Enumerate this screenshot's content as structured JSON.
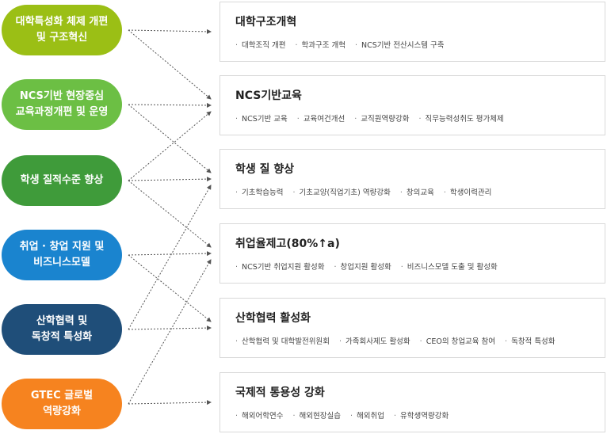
{
  "colors": {
    "lime": "#9bbf15",
    "green": "#6cbf44",
    "dark_green": "#3f9b3a",
    "blue": "#1a84cf",
    "navy": "#1f4e79",
    "orange": "#f6831f"
  },
  "left_nodes": [
    {
      "label": "대학특성화 체제 개편\n및 구조혁신",
      "color": "#9bbf15"
    },
    {
      "label": "NCS기반 현장중심\n교육과정개편 및 운영",
      "color": "#6cbf44"
    },
    {
      "label": "학생 질적수준 향상",
      "color": "#3f9b3a"
    },
    {
      "label": "취업 · 창업 지원 및\n비즈니스모델",
      "color": "#1a84cf"
    },
    {
      "label": "산학협력 및\n독창적 특성화",
      "color": "#1f4e79"
    },
    {
      "label": "GTEC 글로벌\n역량강화",
      "color": "#f6831f"
    }
  ],
  "right_boxes": [
    {
      "title": "대학구조개혁",
      "items": [
        "대학조직 개편",
        "학과구조 개혁",
        "NCS기반 전산시스템 구축"
      ]
    },
    {
      "title": "NCS기반교육",
      "items": [
        "NCS기반 교육",
        "교육여건개선",
        "교직원역량강화",
        "직무능력성취도 평가체제"
      ]
    },
    {
      "title": "학생 질 향상",
      "items": [
        "기초학습능력",
        "기초교양(직업기초) 역량강화",
        "창의교육",
        "학생이력관리"
      ]
    },
    {
      "title": "취업율제고(80%↑a)",
      "items": [
        "NCS기반 취업지원 활성화",
        "창업지원 활성화",
        "비즈니스모델 도출 및 활성화"
      ]
    },
    {
      "title": "산학협력 활성화",
      "items": [
        "산학협력 및 대학발전위원회",
        "가족회사제도 활성화",
        "CEO의 창업교육 참여",
        "독창적 특성화"
      ]
    },
    {
      "title": "국제적 통용성 강화",
      "items": [
        "해외어학연수",
        "해외현장실습",
        "해외취업",
        "유학생역량강화"
      ]
    }
  ],
  "links": [
    {
      "from": 0,
      "to": 0
    },
    {
      "from": 0,
      "to": 1
    },
    {
      "from": 1,
      "to": 1
    },
    {
      "from": 1,
      "to": 2
    },
    {
      "from": 2,
      "to": 1
    },
    {
      "from": 2,
      "to": 2
    },
    {
      "from": 2,
      "to": 3
    },
    {
      "from": 3,
      "to": 3
    },
    {
      "from": 3,
      "to": 4
    },
    {
      "from": 4,
      "to": 2
    },
    {
      "from": 4,
      "to": 4
    },
    {
      "from": 5,
      "to": 3
    },
    {
      "from": 5,
      "to": 5
    }
  ]
}
